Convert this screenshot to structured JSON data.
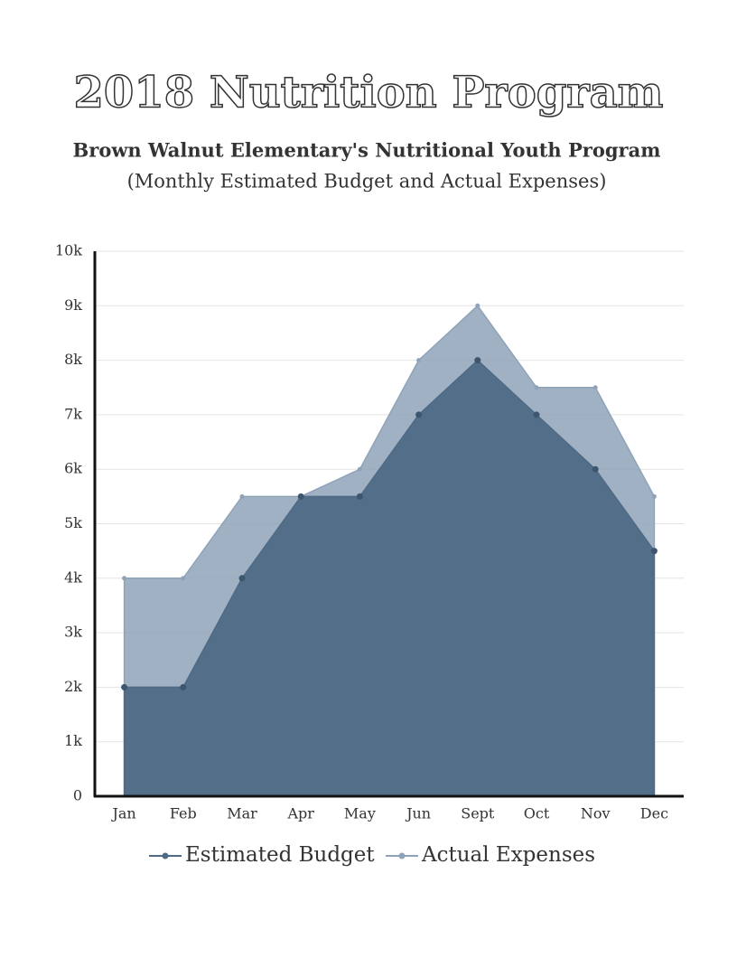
{
  "chart_data": {
    "type": "area",
    "title": "2018 Nutrition Program",
    "subtitle": "Brown Walnut Elementary's Nutritional Youth Program",
    "subtitle2": "(Monthly Estimated Budget and Actual Expenses)",
    "categories": [
      "Jan",
      "Feb",
      "Mar",
      "Apr",
      "May",
      "Jun",
      "Sept",
      "Oct",
      "Nov",
      "Dec"
    ],
    "series": [
      {
        "name": "Actual Expenses",
        "color": "#8fa3b8",
        "values": [
          4000,
          4000,
          5500,
          5500,
          6000,
          8000,
          9000,
          7500,
          7500,
          5500
        ]
      },
      {
        "name": "Estimated Budget",
        "color": "#4e6a85",
        "values": [
          2000,
          2000,
          4000,
          5500,
          5500,
          7000,
          8000,
          7000,
          6000,
          4500
        ]
      }
    ],
    "ylim": [
      0,
      10000
    ],
    "yticks": [
      0,
      {
        "value": 1000,
        "label": "1k"
      },
      {
        "value": 2000,
        "label": "2k"
      },
      {
        "value": 3000,
        "label": "3k"
      },
      {
        "value": 4000,
        "label": "4k"
      },
      {
        "value": 5000,
        "label": "5k"
      },
      {
        "value": 6000,
        "label": "6k"
      },
      {
        "value": 7000,
        "label": "7k"
      },
      {
        "value": 8000,
        "label": "8k"
      },
      {
        "value": 9000,
        "label": "9k"
      },
      {
        "value": 10000,
        "label": "10k"
      }
    ],
    "grid": true
  }
}
